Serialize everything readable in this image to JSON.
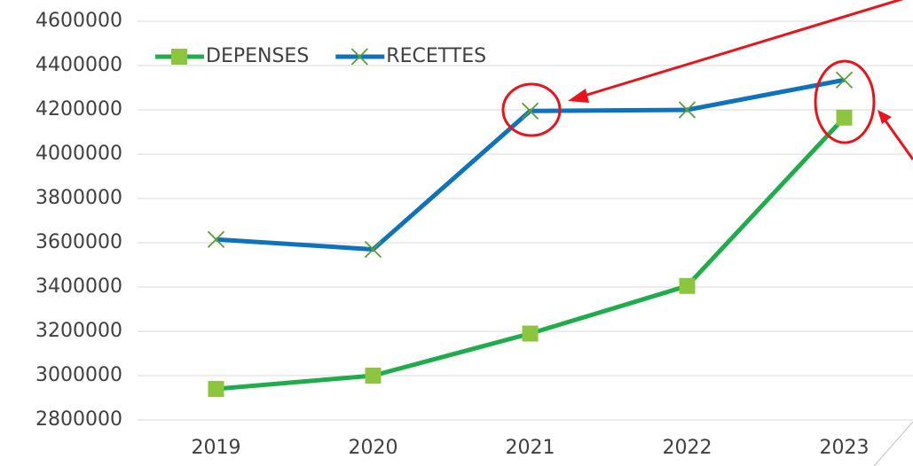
{
  "chart_data": {
    "type": "line",
    "categories": [
      "2019",
      "2020",
      "2021",
      "2022",
      "2023"
    ],
    "series": [
      {
        "name": "DEPENSES",
        "color": "#1fad4b",
        "marker_color": "#8cc63f",
        "marker": "square",
        "values": [
          2940000,
          3000000,
          3190000,
          3405000,
          4165000
        ]
      },
      {
        "name": "RECETTES",
        "color": "#0f72bd",
        "marker_color": "#5aa02c",
        "marker": "x",
        "values": [
          3615000,
          3570000,
          4195000,
          4200000,
          4335000
        ]
      }
    ],
    "ylim": [
      2800000,
      4600000
    ],
    "yticks": [
      2800000,
      3000000,
      3200000,
      3400000,
      3600000,
      3800000,
      4000000,
      4200000,
      4400000,
      4600000
    ],
    "grid": true,
    "legend": "top-left"
  }
}
